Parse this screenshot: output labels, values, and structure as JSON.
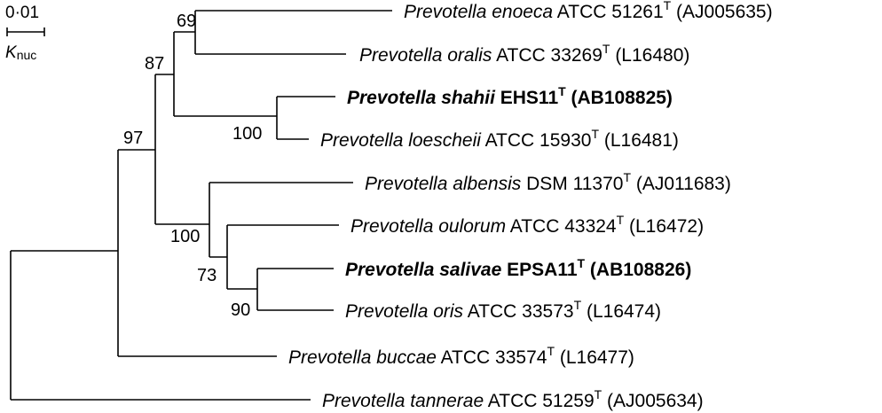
{
  "scale_bar": {
    "value": "0·01",
    "label": "K",
    "label_sub": "nuc"
  },
  "taxa": [
    {
      "id": "enoeca",
      "genus": "Prevotella",
      "species": "enoeca",
      "strain_prefix": "ATCC",
      "strain": "51261",
      "type_mark": "T",
      "accession": "(AJ005635)",
      "bold": false
    },
    {
      "id": "oralis",
      "genus": "Prevotella",
      "species": "oralis",
      "strain_prefix": "ATCC",
      "strain": "33269",
      "type_mark": "T",
      "accession": "(L16480)",
      "bold": false
    },
    {
      "id": "shahii",
      "genus": "Prevotella",
      "species": "shahii",
      "strain_prefix": "",
      "strain": "EHS11",
      "type_mark": "T",
      "accession": "(AB108825)",
      "bold": true
    },
    {
      "id": "loescheii",
      "genus": "Prevotella",
      "species": "loescheii",
      "strain_prefix": "ATCC",
      "strain": "15930",
      "type_mark": "T",
      "accession": "(L16481)",
      "bold": false
    },
    {
      "id": "albensis",
      "genus": "Prevotella",
      "species": "albensis",
      "strain_prefix": "DSM",
      "strain": "11370",
      "type_mark": "T",
      "accession": "(AJ011683)",
      "bold": false
    },
    {
      "id": "oulorum",
      "genus": "Prevotella",
      "species": "oulorum",
      "strain_prefix": "ATCC",
      "strain": "43324",
      "type_mark": "T",
      "accession": "(L16472)",
      "bold": false
    },
    {
      "id": "salivae",
      "genus": "Prevotella",
      "species": "salivae",
      "strain_prefix": "",
      "strain": "EPSA11",
      "type_mark": "T",
      "accession": "(AB108826)",
      "bold": true
    },
    {
      "id": "oris",
      "genus": "Prevotella",
      "species": "oris",
      "strain_prefix": "ATCC",
      "strain": "33573",
      "type_mark": "T",
      "accession": "(L16474)",
      "bold": false
    },
    {
      "id": "buccae",
      "genus": "Prevotella",
      "species": "buccae",
      "strain_prefix": "ATCC",
      "strain": "33574",
      "type_mark": "T",
      "accession": "(L16477)",
      "bold": false
    },
    {
      "id": "tannerae",
      "genus": "Prevotella",
      "species": "tannerae",
      "strain_prefix": "ATCC",
      "strain": "51259",
      "type_mark": "T",
      "accession": "(AJ005634)",
      "bold": false
    }
  ],
  "bootstrap": {
    "enoeca_oralis": "69",
    "shahii_group": "87",
    "shahii_loescheii": "100",
    "root_inner": "97",
    "albensis_group": "100",
    "oulorum_group": "73",
    "salivae_oris": "90"
  }
}
